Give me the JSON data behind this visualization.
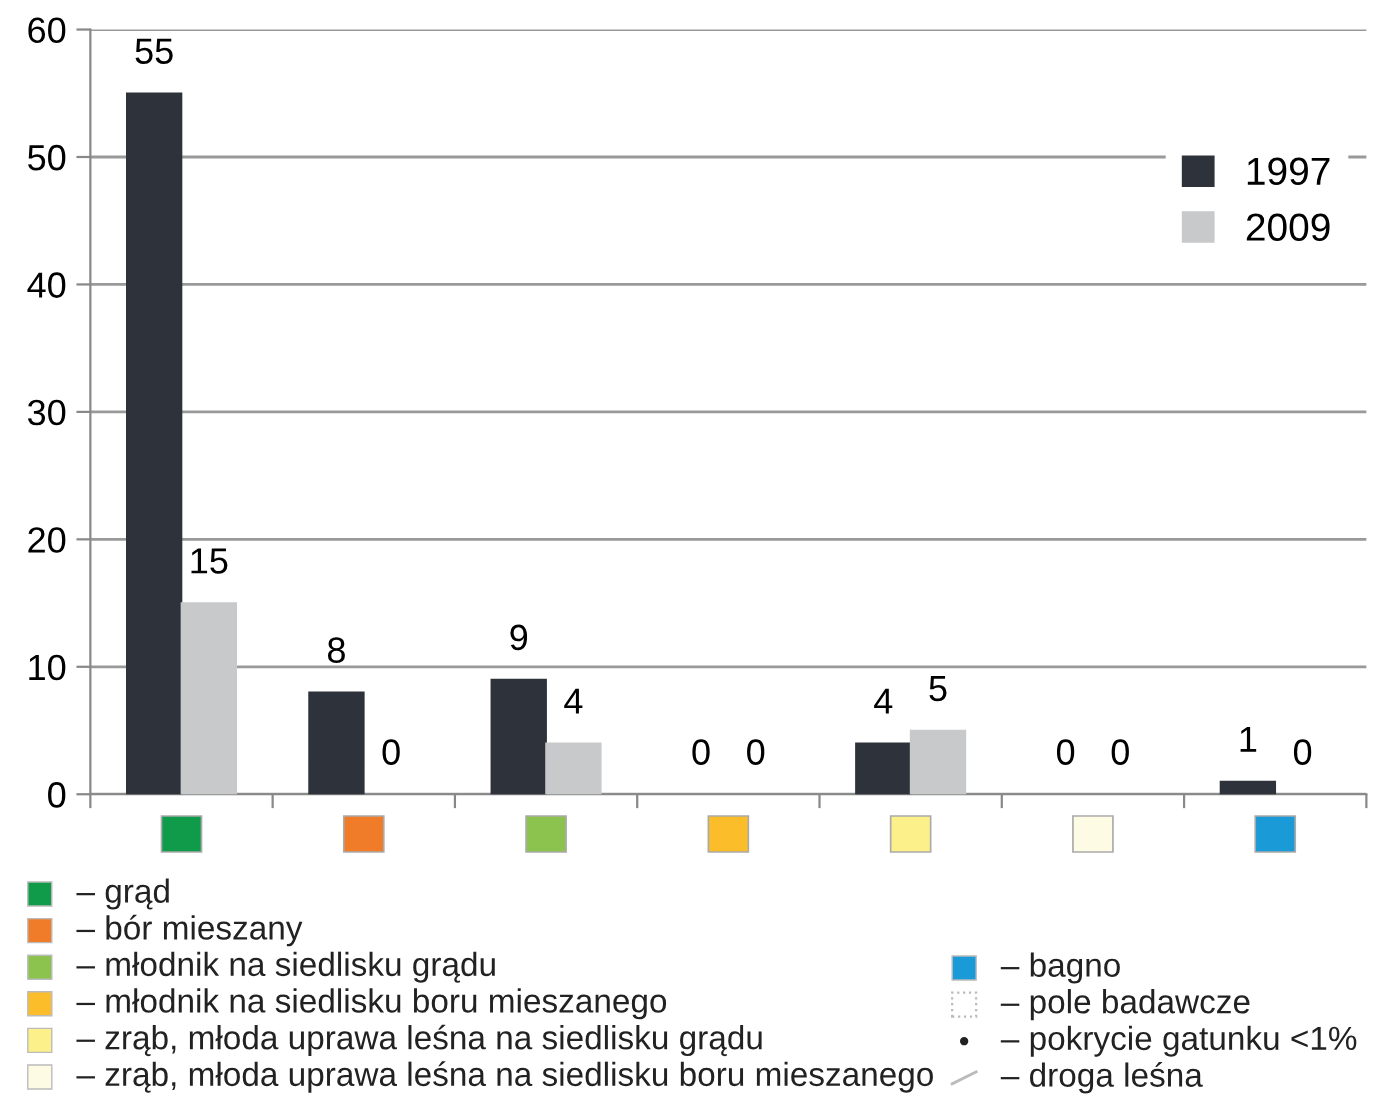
{
  "chart_data": {
    "type": "bar",
    "categories": [
      null,
      null,
      null,
      null,
      null,
      null,
      null
    ],
    "series": [
      {
        "name": "1997",
        "color": "#2e323b",
        "values": [
          55,
          8,
          9,
          0,
          4,
          0,
          1
        ]
      },
      {
        "name": "2009",
        "color": "#c8c9cb",
        "values": [
          15,
          0,
          4,
          0,
          5,
          0,
          0
        ]
      }
    ],
    "ylim": [
      0,
      60
    ],
    "yticks": [
      0,
      10,
      20,
      30,
      40,
      50,
      60
    ],
    "grid": "y",
    "legend": "top right",
    "data_labels": true,
    "annotations": [
      "– grąd",
      "– bór mieszany",
      "– młodnik na siedlisku grądu",
      "– młodnik na siedlisku boru mieszanego",
      "– zrąb, młoda uprawa leśna na siedlisku grądu",
      "– zrąb, młoda uprawa leśna na siedlisku boru mieszanego",
      "– bagno",
      "– pole badawcze",
      "– pokrycie gatunku <1%",
      "– droga leśna"
    ]
  }
}
